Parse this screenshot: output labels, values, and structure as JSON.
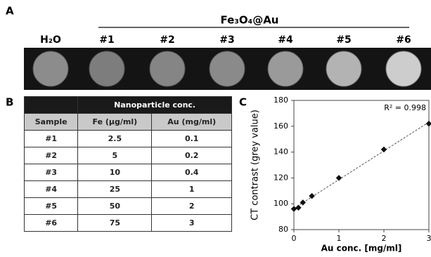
{
  "panel_labels": [
    "A",
    "B",
    "C"
  ],
  "panel_a": {
    "title": "Fe₃O₄@Au",
    "samples": [
      "H₂O",
      "#1",
      "#2",
      "#3",
      "#4",
      "#5",
      "#6"
    ]
  },
  "table": {
    "title": "Nanoparticle conc.",
    "header": [
      "Sample",
      "Fe (µg/ml)",
      "Au (mg/ml)"
    ],
    "rows": [
      [
        "#1",
        2.5,
        0.1
      ],
      [
        "#2",
        5,
        0.2
      ],
      [
        "#3",
        10,
        0.4
      ],
      [
        "#4",
        25,
        1
      ],
      [
        "#5",
        50,
        2
      ],
      [
        "#6",
        75,
        3
      ]
    ]
  },
  "chart_data": {
    "type": "scatter",
    "xlabel": "Au conc. [mg/ml]",
    "ylabel": "CT contrast (grey value)",
    "annotation": "R² = 0.998",
    "x": [
      0,
      0.1,
      0.2,
      0.4,
      1,
      2,
      3
    ],
    "values": [
      96,
      97,
      101,
      106,
      120,
      142,
      162
    ],
    "color": "#111111",
    "trendline": true,
    "xlim": [
      0,
      3
    ],
    "xticks": [
      0,
      1,
      2,
      3
    ],
    "ylim": [
      80,
      180
    ],
    "yticks": [
      80,
      100,
      120,
      140,
      160,
      180
    ]
  }
}
